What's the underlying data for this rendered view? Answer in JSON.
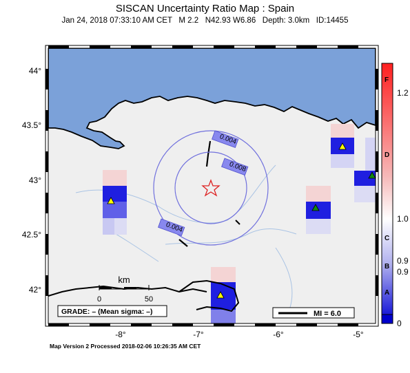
{
  "title": "SISCAN Uncertainty Ratio Map : Spain",
  "subtitle": "Jan 24, 2018 07:33:10 AM CET   M 2.2   N42.93 W6.86   Depth: 3.0km   ID:14455",
  "footer": "Map Version 2 Processed 2018-02-06 10:26:35 AM CET",
  "lat_labels": [
    "44°",
    "43.5°",
    "43°",
    "42.5°",
    "42°"
  ],
  "lon_labels": [
    "-8°",
    "-7°",
    "-6°",
    "-5°"
  ],
  "contour_labels": [
    "0.004",
    "0.008",
    "0.004"
  ],
  "scale": {
    "label": "km",
    "zero": "0",
    "value": "50"
  },
  "grade_text": "GRADE: – (Mean sigma: –)",
  "mi_text": "MI = 6.0",
  "colorbar": {
    "values": [
      "1.2",
      "1.0",
      "0.9",
      "0.9",
      "0"
    ],
    "letters": [
      "F",
      "D",
      "C",
      "B",
      "A"
    ]
  },
  "colors": {
    "sea": "#7ba1d9",
    "land": "#efefef",
    "contour": "#7070dd",
    "epicenter": "#dd2222",
    "station_yellow": "#ffff00",
    "station_green": "#118811"
  }
}
